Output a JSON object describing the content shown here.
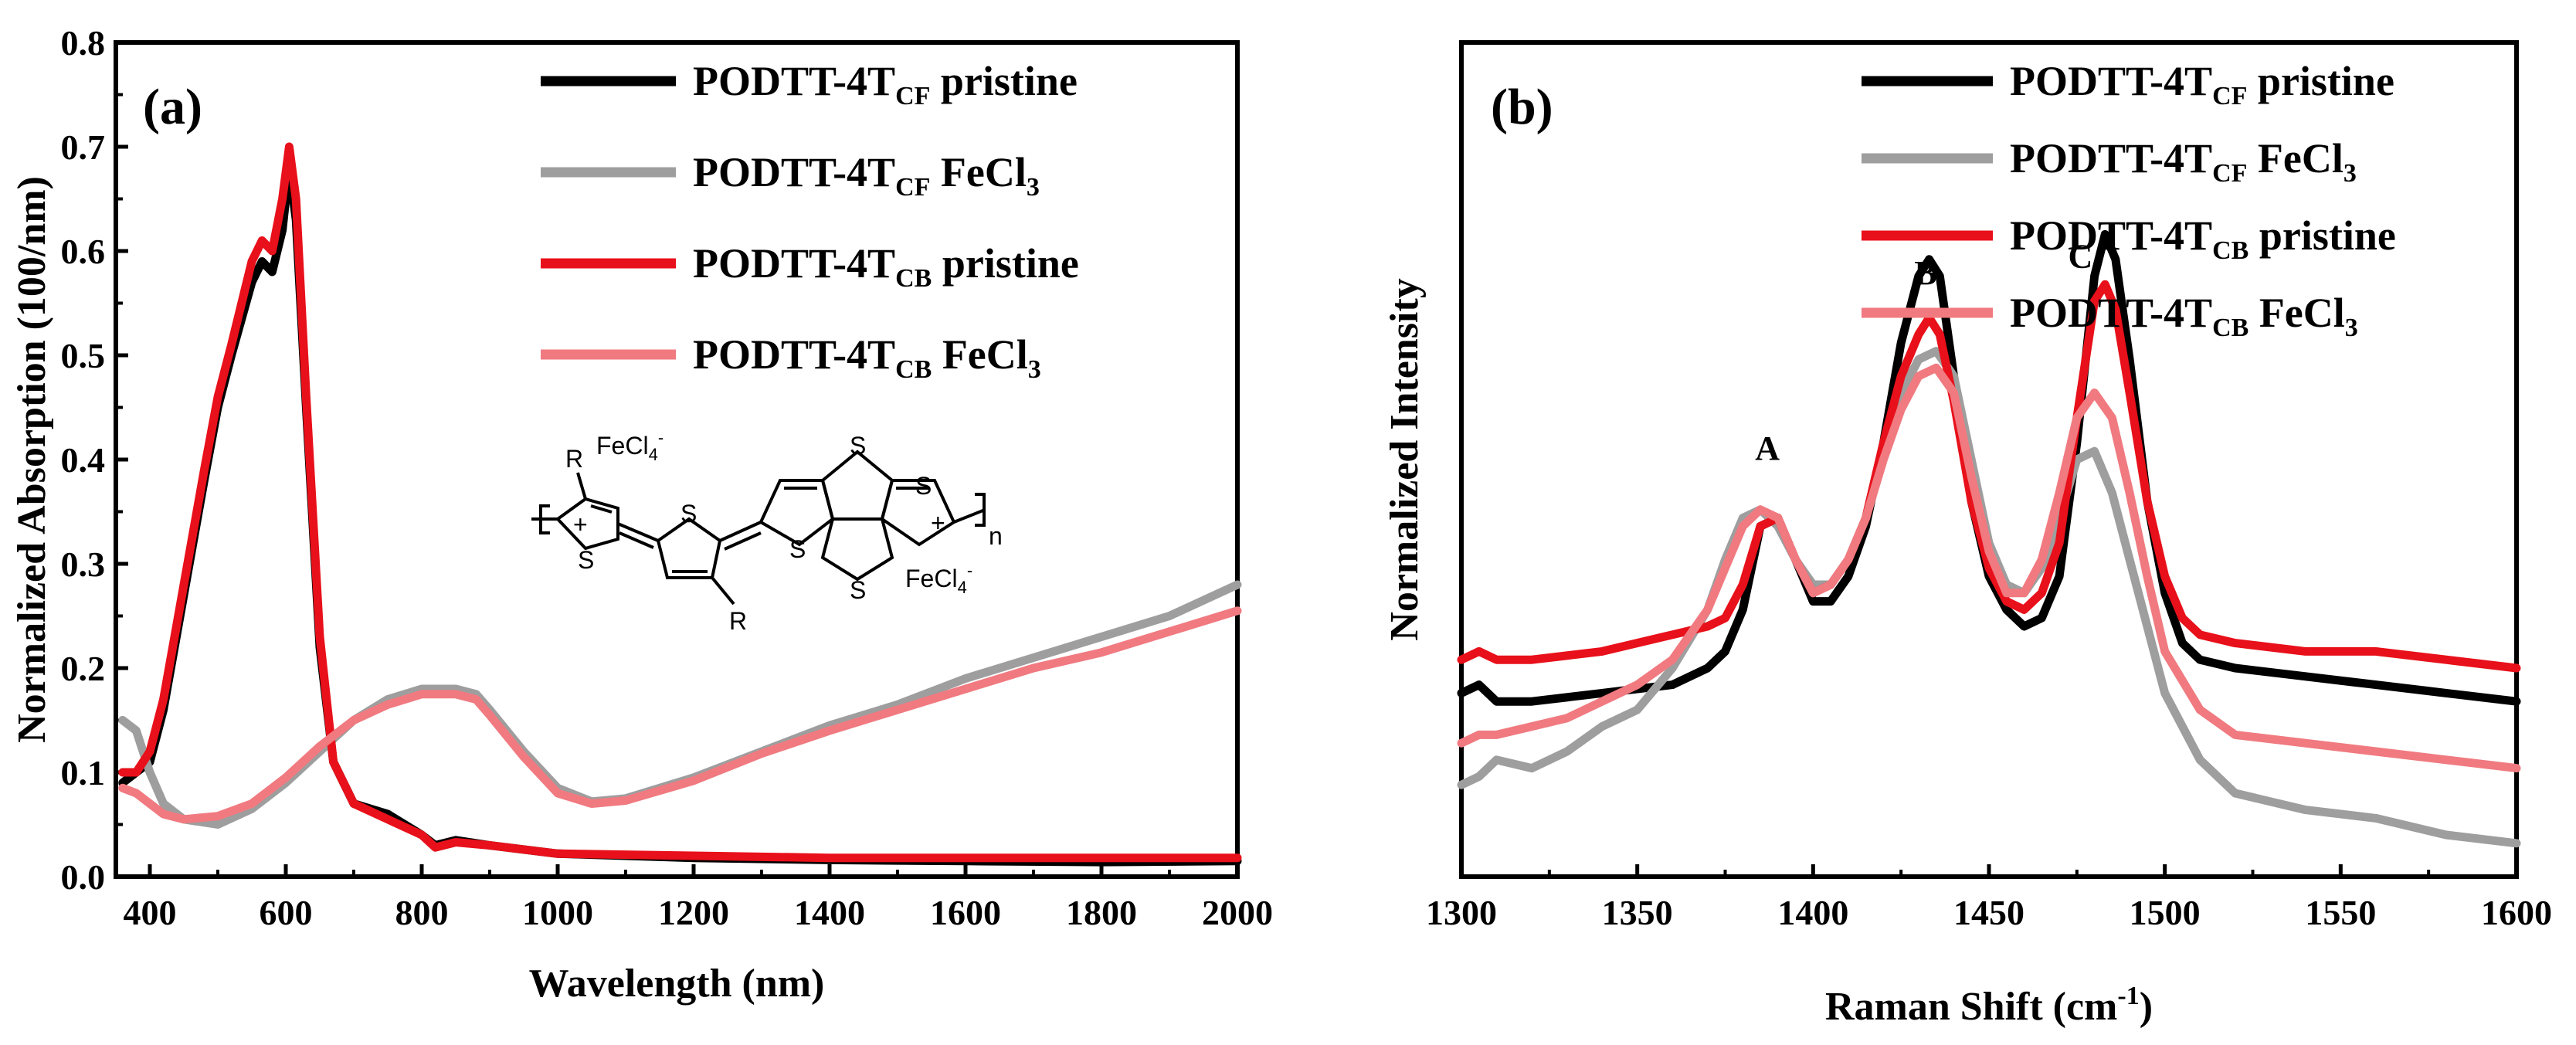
{
  "chart_data": [
    {
      "type": "line",
      "panel_label": "(a)",
      "xlabel": "Wavelength (nm)",
      "ylabel": "Normalized Absorption (100/nm)",
      "xlim": [
        350,
        2000
      ],
      "ylim": [
        0,
        0.8
      ],
      "xticks": [
        400,
        600,
        800,
        1000,
        1200,
        1400,
        1600,
        1800,
        2000
      ],
      "yticks": [
        0.0,
        0.1,
        0.2,
        0.3,
        0.4,
        0.5,
        0.6,
        0.7,
        0.8
      ],
      "legend_position": "top-right",
      "series": [
        {
          "legend_main": "PODTT-4T",
          "legend_sub": "CF",
          "legend_tail": " pristine",
          "color": "#000000",
          "x": [
            360,
            380,
            400,
            420,
            450,
            480,
            500,
            520,
            550,
            565,
            580,
            595,
            605,
            615,
            630,
            650,
            670,
            700,
            750,
            800,
            820,
            850,
            900,
            1000,
            1200,
            1400,
            1600,
            1800,
            2000
          ],
          "y": [
            0.09,
            0.1,
            0.11,
            0.16,
            0.27,
            0.38,
            0.45,
            0.5,
            0.57,
            0.59,
            0.58,
            0.62,
            0.68,
            0.63,
            0.45,
            0.22,
            0.11,
            0.07,
            0.06,
            0.04,
            0.03,
            0.035,
            0.03,
            0.022,
            0.018,
            0.016,
            0.015,
            0.014,
            0.015
          ]
        },
        {
          "legend_main": "PODTT-4T",
          "legend_sub": "CF",
          "legend_tail": " FeCl",
          "legend_tail_sub": "3",
          "color": "#9e9e9e",
          "x": [
            360,
            380,
            400,
            420,
            450,
            500,
            550,
            600,
            650,
            700,
            750,
            800,
            850,
            880,
            900,
            950,
            1000,
            1050,
            1100,
            1200,
            1300,
            1400,
            1500,
            1600,
            1700,
            1800,
            1900,
            2000
          ],
          "y": [
            0.15,
            0.14,
            0.1,
            0.07,
            0.055,
            0.05,
            0.065,
            0.09,
            0.12,
            0.15,
            0.17,
            0.18,
            0.18,
            0.175,
            0.16,
            0.12,
            0.085,
            0.072,
            0.075,
            0.095,
            0.12,
            0.145,
            0.165,
            0.19,
            0.21,
            0.23,
            0.25,
            0.28
          ]
        },
        {
          "legend_main": "PODTT-4T",
          "legend_sub": "CB",
          "legend_tail": " pristine",
          "color": "#e8101a",
          "x": [
            360,
            380,
            400,
            420,
            450,
            480,
            500,
            520,
            550,
            565,
            580,
            595,
            605,
            615,
            630,
            650,
            670,
            700,
            750,
            800,
            820,
            850,
            900,
            1000,
            1200,
            1400,
            1600,
            1800,
            2000
          ],
          "y": [
            0.1,
            0.1,
            0.12,
            0.17,
            0.28,
            0.39,
            0.46,
            0.51,
            0.59,
            0.61,
            0.6,
            0.65,
            0.7,
            0.65,
            0.46,
            0.23,
            0.11,
            0.07,
            0.055,
            0.04,
            0.028,
            0.033,
            0.03,
            0.022,
            0.02,
            0.018,
            0.018,
            0.018,
            0.018
          ]
        },
        {
          "legend_main": "PODTT-4T",
          "legend_sub": "CB",
          "legend_tail": " FeCl",
          "legend_tail_sub": "3",
          "color": "#f07a80",
          "x": [
            360,
            380,
            400,
            420,
            450,
            500,
            550,
            600,
            650,
            700,
            750,
            800,
            850,
            880,
            900,
            950,
            1000,
            1050,
            1100,
            1200,
            1300,
            1400,
            1500,
            1600,
            1700,
            1800,
            1900,
            2000
          ],
          "y": [
            0.085,
            0.08,
            0.07,
            0.06,
            0.055,
            0.058,
            0.07,
            0.095,
            0.125,
            0.15,
            0.165,
            0.175,
            0.175,
            0.17,
            0.155,
            0.115,
            0.08,
            0.07,
            0.073,
            0.092,
            0.118,
            0.14,
            0.16,
            0.18,
            0.2,
            0.215,
            0.235,
            0.255
          ]
        }
      ],
      "structure_labels": {
        "r_top": "R",
        "fecl4_top": "FeCl",
        "fecl4_top_sub": "4",
        "fecl4_top_sup": "-",
        "s1": "S",
        "s2": "S",
        "s3": "S",
        "s4": "S",
        "s5": "S",
        "s6": "S",
        "plus1": "+",
        "plus2": "+",
        "r_bottom": "R",
        "n": "n",
        "fecl4_bottom": "FeCl",
        "fecl4_bottom_sub": "4",
        "fecl4_bottom_sup": "-"
      }
    },
    {
      "type": "line",
      "panel_label": "(b)",
      "xlabel": "Raman Shift (cm",
      "xlabel_sup": "-1",
      "xlabel_tail": ")",
      "ylabel": "Normalized Intensity",
      "xlim": [
        1300,
        1600
      ],
      "ylim": [
        0,
        1
      ],
      "xticks": [
        1300,
        1350,
        1400,
        1450,
        1500,
        1550,
        1600
      ],
      "legend_position": "top-right",
      "peak_labels": [
        {
          "text": "A",
          "x": 1387,
          "y": 0.5
        },
        {
          "text": "B",
          "x": 1432,
          "y": 0.71
        },
        {
          "text": "C",
          "x": 1476,
          "y": 0.73
        }
      ],
      "series": [
        {
          "legend_main": "PODTT-4T",
          "legend_sub": "CF",
          "legend_tail": " pristine",
          "color": "#000000",
          "x": [
            1300,
            1305,
            1310,
            1320,
            1340,
            1360,
            1370,
            1375,
            1380,
            1385,
            1390,
            1395,
            1400,
            1405,
            1410,
            1415,
            1420,
            1425,
            1430,
            1433,
            1436,
            1440,
            1445,
            1450,
            1455,
            1460,
            1465,
            1470,
            1475,
            1480,
            1483,
            1486,
            1490,
            1495,
            1500,
            1505,
            1510,
            1520,
            1540,
            1560,
            1580,
            1600
          ],
          "y": [
            0.22,
            0.23,
            0.21,
            0.21,
            0.22,
            0.23,
            0.25,
            0.27,
            0.32,
            0.42,
            0.43,
            0.38,
            0.33,
            0.33,
            0.36,
            0.42,
            0.52,
            0.64,
            0.72,
            0.74,
            0.72,
            0.6,
            0.45,
            0.36,
            0.32,
            0.3,
            0.31,
            0.36,
            0.52,
            0.72,
            0.77,
            0.74,
            0.62,
            0.45,
            0.34,
            0.28,
            0.26,
            0.25,
            0.24,
            0.23,
            0.22,
            0.21
          ]
        },
        {
          "legend_main": "PODTT-4T",
          "legend_sub": "CF",
          "legend_tail": " FeCl",
          "legend_tail_sub": "3",
          "color": "#9e9e9e",
          "x": [
            1300,
            1305,
            1310,
            1320,
            1330,
            1340,
            1350,
            1360,
            1370,
            1375,
            1380,
            1385,
            1390,
            1395,
            1400,
            1405,
            1410,
            1415,
            1420,
            1425,
            1430,
            1435,
            1440,
            1445,
            1450,
            1455,
            1460,
            1465,
            1470,
            1475,
            1480,
            1485,
            1490,
            1495,
            1500,
            1510,
            1520,
            1540,
            1560,
            1580,
            1600
          ],
          "y": [
            0.11,
            0.12,
            0.14,
            0.13,
            0.15,
            0.18,
            0.2,
            0.25,
            0.32,
            0.38,
            0.43,
            0.44,
            0.42,
            0.38,
            0.35,
            0.35,
            0.38,
            0.43,
            0.52,
            0.58,
            0.62,
            0.63,
            0.6,
            0.5,
            0.4,
            0.35,
            0.34,
            0.37,
            0.43,
            0.5,
            0.51,
            0.46,
            0.38,
            0.3,
            0.22,
            0.14,
            0.1,
            0.08,
            0.07,
            0.05,
            0.04
          ]
        },
        {
          "legend_main": "PODTT-4T",
          "legend_sub": "CB",
          "legend_tail": " pristine",
          "color": "#e8101a",
          "x": [
            1300,
            1305,
            1310,
            1320,
            1340,
            1360,
            1370,
            1375,
            1380,
            1385,
            1390,
            1395,
            1400,
            1405,
            1410,
            1415,
            1420,
            1425,
            1430,
            1433,
            1436,
            1440,
            1445,
            1450,
            1455,
            1460,
            1465,
            1470,
            1475,
            1480,
            1483,
            1486,
            1490,
            1495,
            1500,
            1505,
            1510,
            1520,
            1540,
            1560,
            1580,
            1600
          ],
          "y": [
            0.26,
            0.27,
            0.26,
            0.26,
            0.27,
            0.29,
            0.3,
            0.31,
            0.35,
            0.42,
            0.43,
            0.38,
            0.34,
            0.35,
            0.38,
            0.43,
            0.52,
            0.6,
            0.65,
            0.67,
            0.65,
            0.57,
            0.45,
            0.37,
            0.33,
            0.32,
            0.34,
            0.4,
            0.55,
            0.69,
            0.71,
            0.68,
            0.58,
            0.45,
            0.36,
            0.31,
            0.29,
            0.28,
            0.27,
            0.27,
            0.26,
            0.25
          ]
        },
        {
          "legend_main": "PODTT-4T",
          "legend_sub": "CB",
          "legend_tail": " FeCl",
          "legend_tail_sub": "3",
          "color": "#f07a80",
          "x": [
            1300,
            1305,
            1310,
            1320,
            1330,
            1340,
            1350,
            1360,
            1370,
            1375,
            1380,
            1385,
            1390,
            1395,
            1400,
            1405,
            1410,
            1415,
            1420,
            1425,
            1430,
            1435,
            1440,
            1445,
            1450,
            1455,
            1460,
            1465,
            1470,
            1475,
            1480,
            1485,
            1490,
            1495,
            1500,
            1510,
            1520,
            1540,
            1560,
            1580,
            1600
          ],
          "y": [
            0.16,
            0.17,
            0.17,
            0.18,
            0.19,
            0.21,
            0.23,
            0.26,
            0.32,
            0.37,
            0.42,
            0.44,
            0.43,
            0.38,
            0.34,
            0.35,
            0.38,
            0.43,
            0.5,
            0.56,
            0.6,
            0.61,
            0.58,
            0.48,
            0.39,
            0.34,
            0.34,
            0.38,
            0.46,
            0.55,
            0.58,
            0.55,
            0.46,
            0.36,
            0.27,
            0.2,
            0.17,
            0.16,
            0.15,
            0.14,
            0.13
          ]
        }
      ]
    }
  ]
}
